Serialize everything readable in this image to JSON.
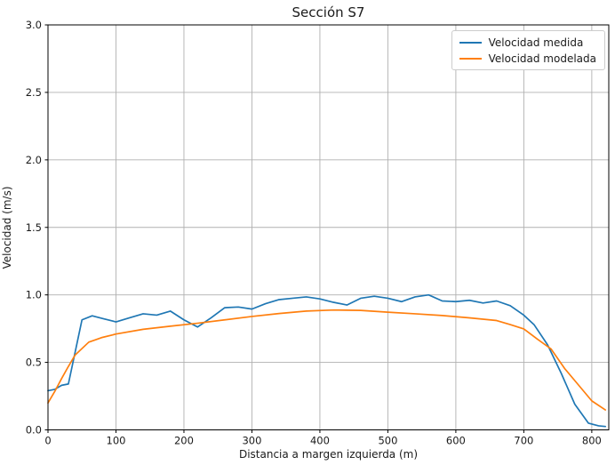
{
  "chart_data": {
    "type": "line",
    "title": "Sección S7",
    "xlabel": "Distancia a margen izquierda (m)",
    "ylabel": "Velocidad (m/s)",
    "xlim": [
      0,
      825
    ],
    "ylim": [
      0,
      3.0
    ],
    "grid": true,
    "legend_position": "upper right",
    "xticks": {
      "values": [
        0,
        100,
        200,
        300,
        400,
        500,
        600,
        700,
        800
      ],
      "labels": [
        "0",
        "100",
        "200",
        "300",
        "400",
        "500",
        "600",
        "700",
        "800"
      ]
    },
    "yticks": {
      "values": [
        0.0,
        0.5,
        1.0,
        1.5,
        2.0,
        2.5,
        3.0
      ],
      "labels": [
        "0.0",
        "0.5",
        "1.0",
        "1.5",
        "2.0",
        "2.5",
        "3.0"
      ]
    },
    "colors": {
      "background": "#ffffff",
      "grid": "#b0b0b0",
      "spine": "#000000",
      "text": "#1a1a1a",
      "measured": "#1f77b4",
      "modeled": "#ff7f0e"
    },
    "series": [
      {
        "name": "Velocidad medida",
        "color": "#1f77b4",
        "x": [
          0,
          10,
          20,
          30,
          50,
          65,
          80,
          100,
          120,
          140,
          160,
          180,
          200,
          220,
          240,
          260,
          280,
          300,
          320,
          340,
          360,
          380,
          400,
          420,
          440,
          460,
          480,
          500,
          520,
          540,
          560,
          580,
          600,
          620,
          640,
          660,
          680,
          700,
          715,
          735,
          755,
          775,
          795,
          810,
          820
        ],
        "y": [
          0.29,
          0.3,
          0.33,
          0.34,
          0.815,
          0.845,
          0.825,
          0.8,
          0.83,
          0.86,
          0.85,
          0.88,
          0.815,
          0.762,
          0.83,
          0.905,
          0.91,
          0.895,
          0.935,
          0.965,
          0.975,
          0.985,
          0.97,
          0.945,
          0.925,
          0.975,
          0.99,
          0.975,
          0.95,
          0.985,
          1.0,
          0.955,
          0.95,
          0.96,
          0.94,
          0.955,
          0.92,
          0.85,
          0.78,
          0.63,
          0.42,
          0.19,
          0.05,
          0.03,
          0.025
        ]
      },
      {
        "name": "Velocidad modelada",
        "color": "#ff7f0e",
        "x": [
          0,
          10,
          20,
          30,
          40,
          60,
          80,
          100,
          140,
          180,
          220,
          260,
          300,
          340,
          380,
          420,
          460,
          500,
          540,
          580,
          620,
          660,
          680,
          700,
          720,
          740,
          760,
          780,
          800,
          820
        ],
        "y": [
          0.2,
          0.285,
          0.38,
          0.47,
          0.555,
          0.65,
          0.685,
          0.71,
          0.745,
          0.768,
          0.79,
          0.815,
          0.84,
          0.862,
          0.88,
          0.888,
          0.885,
          0.872,
          0.86,
          0.847,
          0.83,
          0.81,
          0.78,
          0.748,
          0.672,
          0.6,
          0.455,
          0.335,
          0.215,
          0.148
        ]
      }
    ]
  }
}
